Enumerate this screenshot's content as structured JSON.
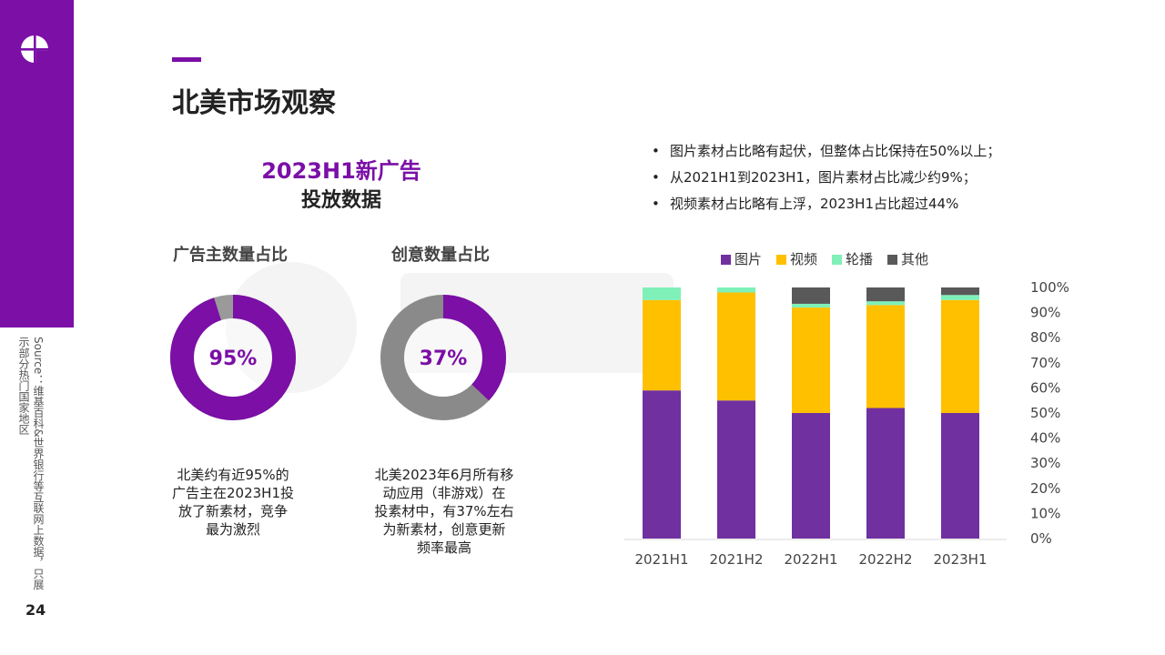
{
  "page": {
    "title": "北美市场观察",
    "page_number": "24",
    "source": "Source：维基百科&世界银行等互联网上数据，只展示部分热门国家地区"
  },
  "left": {
    "subtitle_line1": "2023H1新广告",
    "subtitle_line2": "投放数据",
    "donuts": [
      {
        "label": "广告主数量占比",
        "value_text": "95%",
        "value": 95,
        "color": "#7b0fa6",
        "rest_color": "#9a9a9a",
        "desc": [
          "北美约有近95%的",
          "广告主在2023H1投",
          "放了新素材，竞争",
          "最为激烈"
        ]
      },
      {
        "label": "创意数量占比",
        "value_text": "37%",
        "value": 37,
        "color": "#7b0fa6",
        "rest_color": "#8a8a8a",
        "desc": [
          "北美2023年6月所有移",
          "动应用（非游戏）在",
          "投素材中，有37%左右",
          "为新素材，创意更新",
          "频率最高"
        ]
      }
    ]
  },
  "notes": [
    "图片素材占比略有起伏，但整体占比保持在50%以上；",
    "从2021H1到2023H1，图片素材占比减少约9%；",
    "视频素材占比略有上浮，2023H1占比超过44%"
  ],
  "chart_data": {
    "type": "bar",
    "stacked": true,
    "categories": [
      "2021H1",
      "2021H2",
      "2022H1",
      "2022H2",
      "2023H1"
    ],
    "series": [
      {
        "name": "图片",
        "color": "#7030a0",
        "values": [
          59,
          55,
          50,
          52,
          50
        ]
      },
      {
        "name": "视频",
        "color": "#ffc000",
        "values": [
          36,
          43,
          42,
          41,
          45
        ]
      },
      {
        "name": "轮播",
        "color": "#7ff0b8",
        "values": [
          5,
          2,
          1.5,
          1.5,
          2
        ]
      },
      {
        "name": "其他",
        "color": "#595959",
        "values": [
          0,
          0,
          6.5,
          5.5,
          3
        ]
      }
    ],
    "ylim": [
      0,
      100
    ],
    "yticks": [
      "0%",
      "10%",
      "20%",
      "30%",
      "40%",
      "50%",
      "60%",
      "70%",
      "80%",
      "90%",
      "100%"
    ],
    "legend_position": "top",
    "grid": false
  }
}
